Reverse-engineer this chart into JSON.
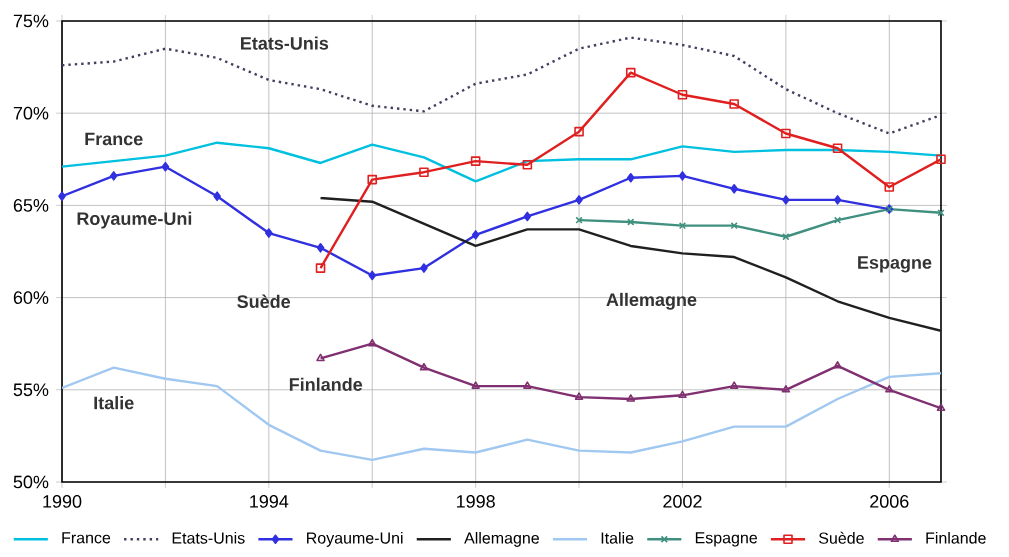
{
  "chart_data": {
    "type": "line",
    "x": [
      1990,
      1991,
      1992,
      1993,
      1994,
      1995,
      1996,
      1997,
      1998,
      1999,
      2000,
      2001,
      2002,
      2003,
      2004,
      2005,
      2006,
      2007
    ],
    "xlim": [
      1990,
      2007
    ],
    "xticks": [
      1990,
      {
        "value": 1992,
        "label": null
      },
      1994,
      {
        "value": 1996,
        "label": null
      },
      1998,
      {
        "value": 2000,
        "label": null
      },
      2002,
      {
        "value": 2004,
        "label": null
      },
      2006
    ],
    "ylim": [
      50,
      75
    ],
    "yticks": [
      {
        "value": 50,
        "label": "50%"
      },
      {
        "value": 55,
        "label": "55%"
      },
      {
        "value": 60,
        "label": "60%"
      },
      {
        "value": 65,
        "label": "65%"
      },
      {
        "value": 70,
        "label": "70%"
      },
      {
        "value": 75,
        "label": "75%"
      }
    ],
    "grid": true,
    "legend": "bottom",
    "series": [
      {
        "name": "France",
        "color": "#00c0e0",
        "marker": "none",
        "line_style": "solid",
        "values": [
          67.1,
          67.4,
          67.7,
          68.4,
          68.1,
          67.3,
          68.3,
          67.6,
          66.3,
          67.4,
          67.5,
          67.5,
          68.2,
          67.9,
          68.0,
          68.0,
          67.9,
          67.7
        ]
      },
      {
        "name": "Etats-Unis",
        "color": "#404060",
        "marker": "none",
        "line_style": "dotted",
        "values": [
          72.6,
          72.8,
          73.5,
          73.0,
          71.8,
          71.3,
          70.4,
          70.1,
          71.6,
          72.1,
          73.5,
          74.1,
          73.7,
          73.1,
          71.3,
          70.0,
          68.9,
          69.9
        ]
      },
      {
        "name": "Royaume-Uni",
        "color": "#3030e0",
        "marker": "diamond",
        "line_style": "solid",
        "values": [
          65.5,
          66.6,
          67.1,
          65.5,
          63.5,
          62.7,
          61.2,
          61.6,
          63.4,
          64.4,
          65.3,
          66.5,
          66.6,
          65.9,
          65.3,
          65.3,
          64.8,
          null
        ]
      },
      {
        "name": "Allemagne",
        "color": "#202020",
        "marker": "none",
        "line_style": "solid",
        "values": [
          null,
          null,
          null,
          null,
          null,
          65.4,
          65.2,
          64.0,
          62.8,
          63.7,
          63.7,
          62.8,
          62.4,
          62.2,
          61.1,
          59.8,
          58.9,
          58.2
        ]
      },
      {
        "name": "Italie",
        "color": "#a0c8f0",
        "marker": "none",
        "line_style": "solid",
        "values": [
          55.1,
          56.2,
          55.6,
          55.2,
          53.1,
          51.7,
          51.2,
          51.8,
          51.6,
          52.3,
          51.7,
          51.6,
          52.2,
          53.0,
          53.0,
          54.5,
          55.7,
          55.9
        ]
      },
      {
        "name": "Espagne",
        "color": "#409080",
        "marker": "cross",
        "line_style": "solid",
        "values": [
          null,
          null,
          null,
          null,
          null,
          null,
          null,
          null,
          null,
          null,
          64.2,
          64.1,
          63.9,
          63.9,
          63.3,
          64.2,
          64.8,
          64.6
        ]
      },
      {
        "name": "Suède",
        "color": "#e02020",
        "marker": "square",
        "line_style": "solid",
        "values": [
          null,
          null,
          null,
          null,
          null,
          61.6,
          66.4,
          66.8,
          67.4,
          67.2,
          69.0,
          72.2,
          71.0,
          70.5,
          68.9,
          68.1,
          66.0,
          67.5
        ]
      },
      {
        "name": "Finlande",
        "color": "#803070",
        "marker": "triangle",
        "line_style": "solid",
        "values": [
          null,
          null,
          null,
          null,
          null,
          56.7,
          57.5,
          56.2,
          55.2,
          55.2,
          54.6,
          54.5,
          54.7,
          55.2,
          55.0,
          56.3,
          55.0,
          54.0
        ]
      }
    ]
  }
}
